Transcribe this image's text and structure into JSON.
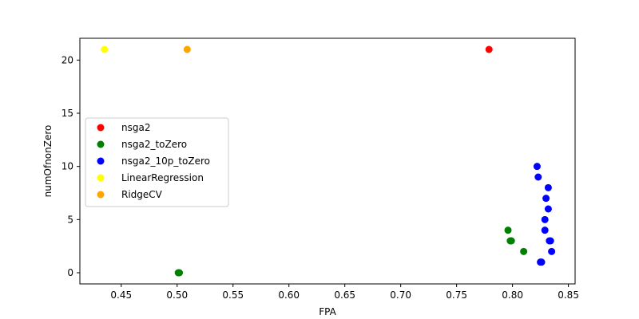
{
  "chart_data": {
    "type": "scatter",
    "xlabel": "FPA",
    "ylabel": "numOfnonZero",
    "xlim": [
      0.413,
      0.856
    ],
    "ylim": [
      -1.05,
      22.05
    ],
    "xticks": [
      0.45,
      0.5,
      0.55,
      0.6,
      0.65,
      0.7,
      0.75,
      0.8,
      0.85
    ],
    "xtick_labels": [
      "0.45",
      "0.50",
      "0.55",
      "0.60",
      "0.65",
      "0.70",
      "0.75",
      "0.80",
      "0.85"
    ],
    "yticks": [
      0,
      5,
      10,
      15,
      20
    ],
    "ytick_labels": [
      "0",
      "5",
      "10",
      "15",
      "20"
    ],
    "grid": false,
    "legend_position": "center-left",
    "series": [
      {
        "name": "nsga2",
        "color": "#ff0000",
        "points": [
          [
            0.779,
            21
          ]
        ]
      },
      {
        "name": "nsga2_toZero",
        "color": "#008000",
        "points": [
          [
            0.501,
            0
          ],
          [
            0.502,
            0
          ],
          [
            0.796,
            4
          ],
          [
            0.798,
            3
          ],
          [
            0.799,
            3
          ],
          [
            0.81,
            2
          ]
        ]
      },
      {
        "name": "nsga2_10p_toZero",
        "color": "#0000ff",
        "points": [
          [
            0.822,
            10
          ],
          [
            0.823,
            9
          ],
          [
            0.832,
            8
          ],
          [
            0.83,
            7
          ],
          [
            0.832,
            6
          ],
          [
            0.829,
            5
          ],
          [
            0.829,
            4
          ],
          [
            0.833,
            3
          ],
          [
            0.834,
            3
          ],
          [
            0.835,
            2
          ],
          [
            0.825,
            1
          ],
          [
            0.826,
            1
          ]
        ]
      },
      {
        "name": "LinearRegression",
        "color": "#ffff00",
        "points": [
          [
            0.435,
            21
          ]
        ]
      },
      {
        "name": "RidgeCV",
        "color": "#ffa500",
        "points": [
          [
            0.509,
            21
          ]
        ]
      }
    ]
  }
}
